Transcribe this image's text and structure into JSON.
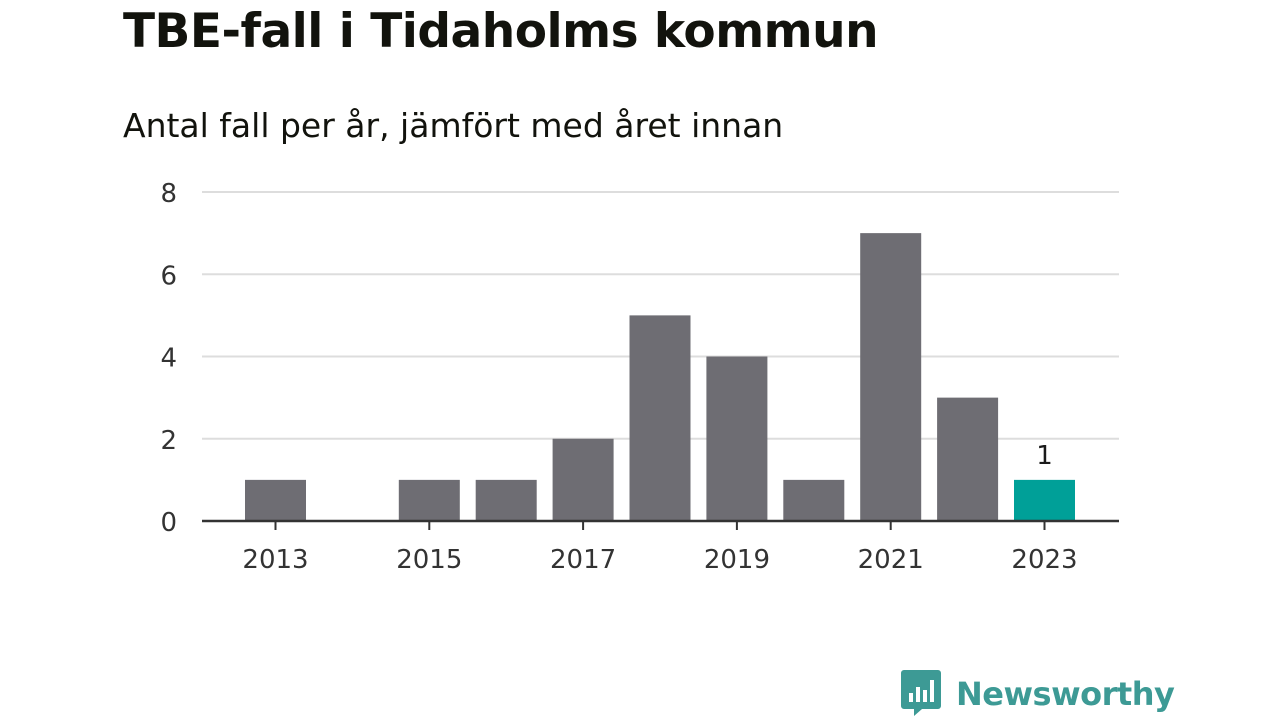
{
  "title": "TBE-fall i Tidaholms kommun",
  "subtitle": "Antal fall per år, jämfört med året innan",
  "brand": {
    "name": "Newsworthy",
    "logo_icon": "bar-chart-speech-bubble-icon"
  },
  "colors": {
    "bar": "#6e6d73",
    "highlight": "#00a098",
    "grid": "#dddddd",
    "axis": "#333333",
    "brand": "#3d9a95"
  },
  "chart_data": {
    "type": "bar",
    "title": "TBE-fall i Tidaholms kommun",
    "subtitle": "Antal fall per år, jämfört med året innan",
    "categories": [
      "2013",
      "2014",
      "2015",
      "2016",
      "2017",
      "2018",
      "2019",
      "2020",
      "2021",
      "2022",
      "2023"
    ],
    "values": [
      1,
      0,
      1,
      1,
      2,
      5,
      4,
      1,
      7,
      3,
      1
    ],
    "x_tick_labels": [
      "2013",
      "2015",
      "2017",
      "2019",
      "2021",
      "2023"
    ],
    "y_ticks": [
      0,
      2,
      4,
      6,
      8
    ],
    "ylim": [
      0,
      8
    ],
    "grid": true,
    "highlight_category": "2023",
    "data_labels": [
      {
        "category": "2023",
        "label": "1"
      }
    ],
    "xlabel": "",
    "ylabel": ""
  }
}
